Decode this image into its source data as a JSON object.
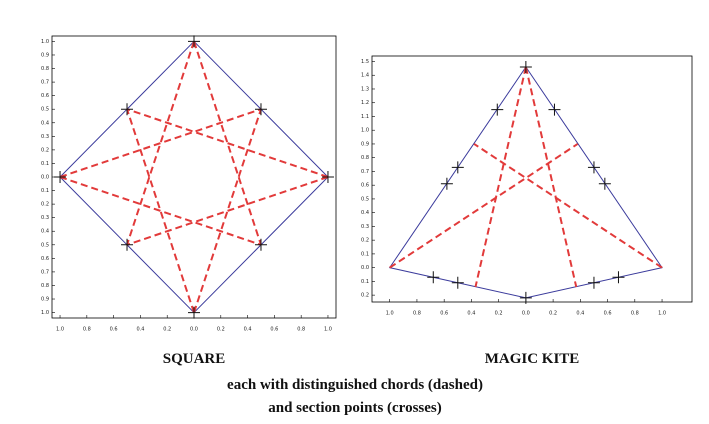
{
  "chart_data": [
    {
      "type": "figure",
      "title": "SQUARE",
      "outline_color": "#3b3b9c",
      "chord_color": "#e23a3a",
      "cross_color": "#111111",
      "xlim": [
        -1.06,
        1.06
      ],
      "ylim": [
        -1.04,
        1.04
      ],
      "xticks": [
        {
          "value": -1,
          "label": "1.0"
        },
        {
          "value": -0.8,
          "label": "0.8"
        },
        {
          "value": -0.6,
          "label": "0.6"
        },
        {
          "value": -0.4,
          "label": "0.4"
        },
        {
          "value": -0.2,
          "label": "0.2"
        },
        {
          "value": 0,
          "label": "0.0"
        },
        {
          "value": 0.2,
          "label": "0.2"
        },
        {
          "value": 0.4,
          "label": "0.4"
        },
        {
          "value": 0.6,
          "label": "0.6"
        },
        {
          "value": 0.8,
          "label": "0.8"
        },
        {
          "value": 1,
          "label": "1.0"
        }
      ],
      "yticks": [
        {
          "value": 1,
          "label": "1.0"
        },
        {
          "value": 0.9,
          "label": "0.9"
        },
        {
          "value": 0.8,
          "label": "0.8"
        },
        {
          "value": 0.7,
          "label": "0.7"
        },
        {
          "value": 0.6,
          "label": "0.6"
        },
        {
          "value": 0.5,
          "label": "0.5"
        },
        {
          "value": 0.4,
          "label": "0.4"
        },
        {
          "value": 0.3,
          "label": "0.3"
        },
        {
          "value": 0.2,
          "label": "0.2"
        },
        {
          "value": 0.1,
          "label": "0.1"
        },
        {
          "value": 0,
          "label": "0.0"
        },
        {
          "value": -0.1,
          "label": "0.1"
        },
        {
          "value": -0.2,
          "label": "0.2"
        },
        {
          "value": -0.3,
          "label": "0.3"
        },
        {
          "value": -0.4,
          "label": "0.4"
        },
        {
          "value": -0.5,
          "label": "0.5"
        },
        {
          "value": -0.6,
          "label": "0.6"
        },
        {
          "value": -0.7,
          "label": "0.7"
        },
        {
          "value": -0.8,
          "label": "0.8"
        },
        {
          "value": -0.9,
          "label": "0.9"
        },
        {
          "value": -1,
          "label": "1.0"
        }
      ],
      "outline": {
        "x": [
          0,
          1,
          0,
          -1
        ],
        "y": [
          1,
          0,
          -1,
          0
        ]
      },
      "chords": [
        {
          "x": [
            0,
            -0.5
          ],
          "y": [
            1,
            -0.5
          ]
        },
        {
          "x": [
            0,
            0.5
          ],
          "y": [
            1,
            -0.5
          ]
        },
        {
          "x": [
            0,
            -0.5
          ],
          "y": [
            -1,
            0.5
          ]
        },
        {
          "x": [
            0,
            0.5
          ],
          "y": [
            -1,
            0.5
          ]
        },
        {
          "x": [
            -1,
            0.5
          ],
          "y": [
            0,
            0.5
          ]
        },
        {
          "x": [
            -1,
            0.5
          ],
          "y": [
            0,
            -0.5
          ]
        },
        {
          "x": [
            1,
            -0.5
          ],
          "y": [
            0,
            0.5
          ]
        },
        {
          "x": [
            1,
            -0.5
          ],
          "y": [
            0,
            -0.5
          ]
        }
      ],
      "crosses": {
        "x": [
          0,
          0.5,
          1,
          0.5,
          0,
          -0.5,
          -1,
          -0.5
        ],
        "y": [
          1,
          0.5,
          0,
          -0.5,
          -1,
          -0.5,
          0,
          0.5
        ]
      }
    },
    {
      "type": "figure",
      "title": "MAGIC KITE",
      "outline_color": "#3b3b9c",
      "chord_color": "#e23a3a",
      "cross_color": "#111111",
      "xlim": [
        -1.13,
        1.22
      ],
      "ylim": [
        -0.25,
        1.54
      ],
      "xticks": [
        {
          "value": -1,
          "label": "1.0"
        },
        {
          "value": -0.8,
          "label": "0.8"
        },
        {
          "value": -0.6,
          "label": "0.6"
        },
        {
          "value": -0.4,
          "label": "0.4"
        },
        {
          "value": -0.2,
          "label": "0.2"
        },
        {
          "value": 0,
          "label": "0.0"
        },
        {
          "value": 0.2,
          "label": "0.2"
        },
        {
          "value": 0.4,
          "label": "0.4"
        },
        {
          "value": 0.6,
          "label": "0.6"
        },
        {
          "value": 0.8,
          "label": "0.8"
        },
        {
          "value": 1,
          "label": "1.0"
        }
      ],
      "yticks": [
        1.5,
        1.4,
        1.3,
        1.2,
        1.1,
        {
          "value": 1,
          "label": "1.0"
        },
        0.9,
        0.8,
        0.7,
        0.6,
        0.5,
        0.4,
        0.3,
        0.2,
        0.1,
        {
          "value": 0,
          "label": "0.0"
        },
        {
          "value": -0.1,
          "label": "0.1"
        },
        {
          "value": -0.2,
          "label": "0.2"
        }
      ],
      "outline": {
        "x": [
          0,
          1,
          0,
          -1
        ],
        "y": [
          1.46,
          0,
          -0.22,
          0
        ]
      },
      "chords": [
        {
          "x": [
            0,
            -0.37
          ],
          "y": [
            1.46,
            -0.14
          ]
        },
        {
          "x": [
            0,
            0.37
          ],
          "y": [
            1.46,
            -0.14
          ]
        },
        {
          "x": [
            -1,
            0.38
          ],
          "y": [
            0,
            0.9
          ]
        },
        {
          "x": [
            1,
            -0.38
          ],
          "y": [
            0,
            0.9
          ]
        }
      ],
      "crosses": {
        "x": [
          0,
          -0.21,
          0.21,
          -0.5,
          0.5,
          -0.58,
          0.58,
          -0.68,
          0.68,
          -0.5,
          0.5,
          0
        ],
        "y": [
          1.46,
          1.15,
          1.15,
          0.73,
          0.73,
          0.61,
          0.61,
          -0.07,
          -0.07,
          -0.11,
          -0.11,
          -0.22
        ]
      }
    }
  ],
  "caption": [
    "each with distinguished chords (dashed)",
    "and section points (crosses)"
  ]
}
